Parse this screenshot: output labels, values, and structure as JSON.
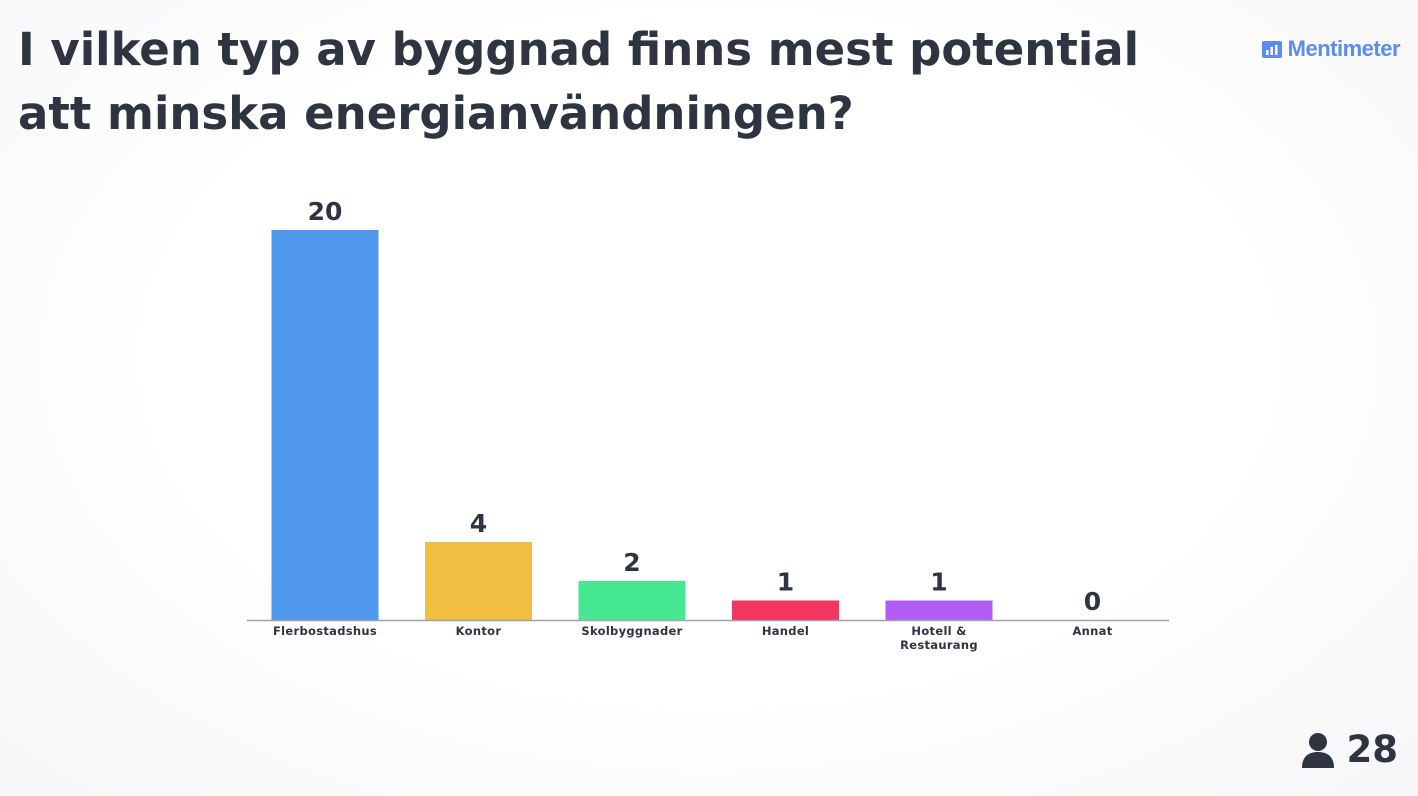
{
  "title": "I vilken typ av byggnad finns mest potential att minska energianvändningen?",
  "brand": {
    "name": "Mentimeter",
    "icon": "bar-chart-icon",
    "color": "#5b8def"
  },
  "participants": {
    "icon": "user-icon",
    "count": "28"
  },
  "chart_data": {
    "type": "bar",
    "title": "",
    "xlabel": "",
    "ylabel": "",
    "categories": [
      [
        "Flerbostadshus"
      ],
      [
        "Kontor"
      ],
      [
        "Skolbyggnader"
      ],
      [
        "Handel"
      ],
      [
        "Hotell &",
        "Restaurang"
      ],
      [
        "Annat"
      ]
    ],
    "values": [
      20,
      4,
      2,
      1,
      1,
      0
    ],
    "colors": [
      "#4f98ee",
      "#f1be41",
      "#46e891",
      "#f1365f",
      "#b25cf5",
      "#cccccc"
    ],
    "ylim": [
      0,
      20
    ],
    "grid": false,
    "legend": "none",
    "show_value_labels": true
  }
}
